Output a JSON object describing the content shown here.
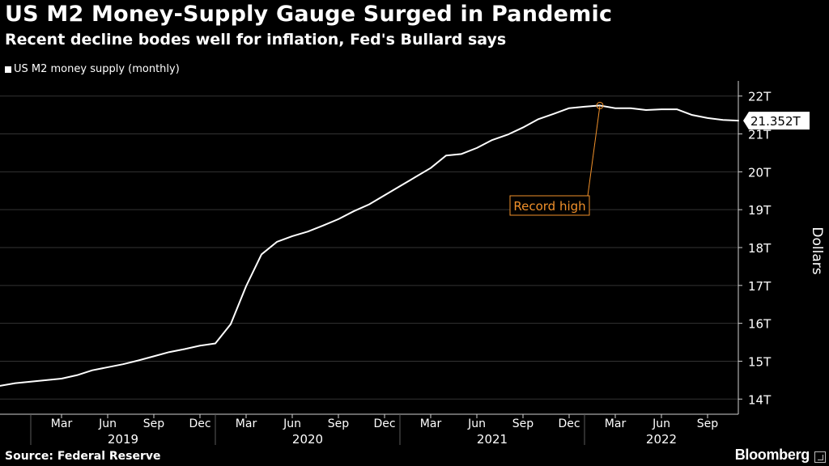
{
  "header": {
    "title": "US M2 Money-Supply Gauge Surged in Pandemic",
    "subtitle": "Recent decline bodes well for inflation, Fed's Bullard says"
  },
  "footer": {
    "source": "Source: Federal Reserve",
    "brand": "Bloomberg"
  },
  "colors": {
    "background": "#000000",
    "line": "#ffffff",
    "gridline": "#333333",
    "annotation": "#f0902a"
  },
  "chart_data": {
    "type": "line",
    "series": [
      {
        "name": "US M2 money supply (monthly)",
        "x": [
          "2018-11",
          "2018-12",
          "2019-01",
          "2019-02",
          "2019-03",
          "2019-04",
          "2019-05",
          "2019-06",
          "2019-07",
          "2019-08",
          "2019-09",
          "2019-10",
          "2019-11",
          "2019-12",
          "2020-01",
          "2020-02",
          "2020-03",
          "2020-04",
          "2020-05",
          "2020-06",
          "2020-07",
          "2020-08",
          "2020-09",
          "2020-10",
          "2020-11",
          "2020-12",
          "2021-01",
          "2021-02",
          "2021-03",
          "2021-04",
          "2021-05",
          "2021-06",
          "2021-07",
          "2021-08",
          "2021-09",
          "2021-10",
          "2021-11",
          "2021-12",
          "2022-01",
          "2022-02",
          "2022-03",
          "2022-04",
          "2022-05",
          "2022-06",
          "2022-07",
          "2022-08",
          "2022-09",
          "2022-10",
          "2022-11"
        ],
        "values": [
          14.35,
          14.42,
          14.46,
          14.5,
          14.54,
          14.63,
          14.76,
          14.84,
          14.92,
          15.02,
          15.13,
          15.24,
          15.32,
          15.41,
          15.47,
          15.98,
          16.98,
          17.82,
          18.15,
          18.3,
          18.42,
          18.58,
          18.75,
          18.96,
          19.14,
          19.38,
          19.62,
          19.86,
          20.1,
          20.43,
          20.47,
          20.63,
          20.84,
          20.98,
          21.17,
          21.39,
          21.53,
          21.68,
          21.72,
          21.75,
          21.68,
          21.68,
          21.63,
          21.65,
          21.65,
          21.5,
          21.42,
          21.37,
          21.352
        ]
      }
    ],
    "x_range": [
      "2018-11",
      "2022-11"
    ],
    "x_tick_labels": [
      "Mar",
      "Jun",
      "Sep",
      "Dec",
      "Mar",
      "Jun",
      "Sep",
      "Dec",
      "Mar",
      "Jun",
      "Sep",
      "Dec",
      "Mar",
      "Jun",
      "Sep"
    ],
    "x_tick_dates": [
      "2019-03",
      "2019-06",
      "2019-09",
      "2019-12",
      "2020-03",
      "2020-06",
      "2020-09",
      "2020-12",
      "2021-03",
      "2021-06",
      "2021-09",
      "2021-12",
      "2022-03",
      "2022-06",
      "2022-09"
    ],
    "x_year_labels": [
      "2019",
      "2020",
      "2021",
      "2022"
    ],
    "y_tick_labels": [
      "14T",
      "15T",
      "16T",
      "17T",
      "18T",
      "19T",
      "20T",
      "21T",
      "22T"
    ],
    "y_ticks": [
      14,
      15,
      16,
      17,
      18,
      19,
      20,
      21,
      22
    ],
    "ylim": [
      13.6,
      22.4
    ],
    "ylabel": "Dollars",
    "y_axis_side": "right",
    "grid": true,
    "legend_position": "top-left",
    "last_value_label": "21.352T",
    "annotation": {
      "text": "Record high",
      "x": "2022-02",
      "y": 21.75
    }
  }
}
